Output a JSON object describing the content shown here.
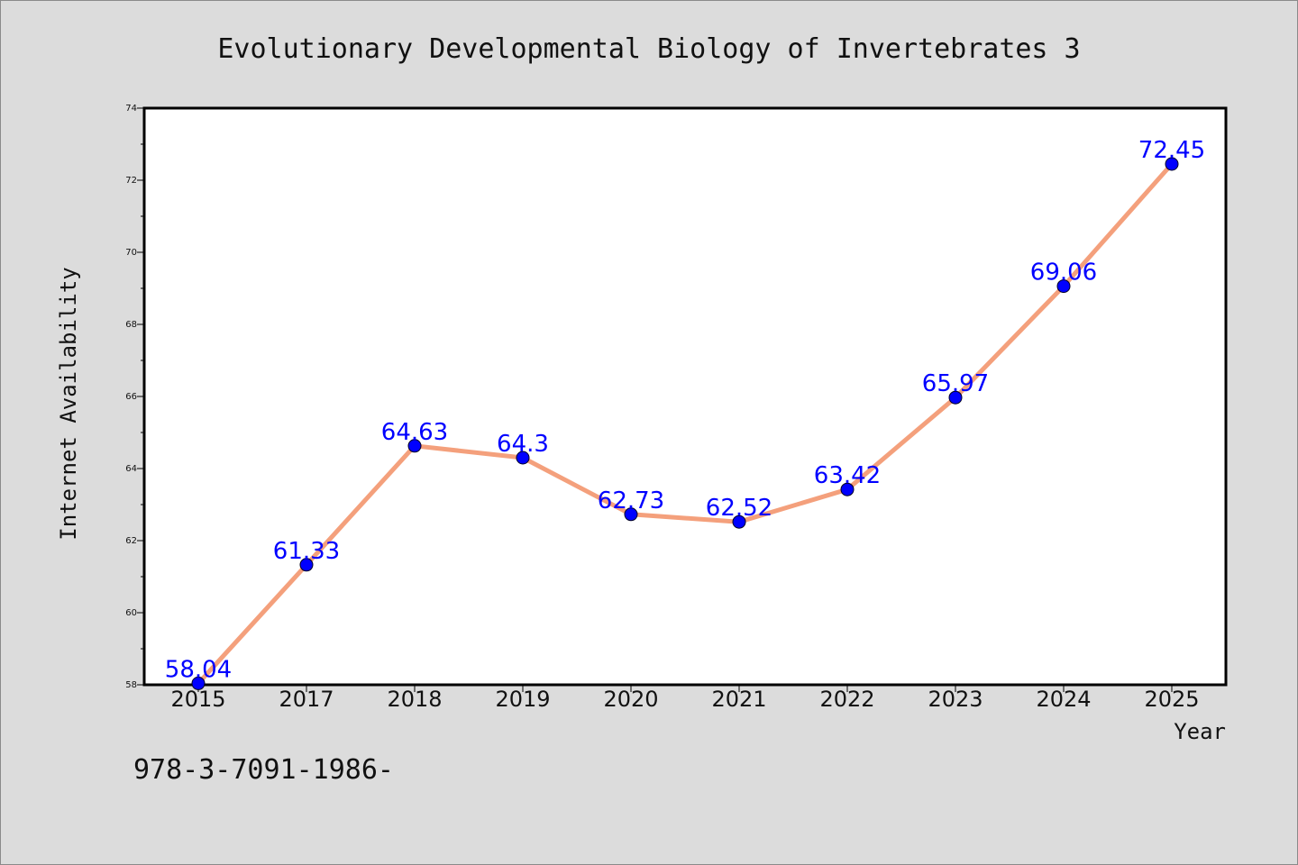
{
  "chart_data": {
    "type": "line",
    "title": "Evolutionary Developmental Biology of Invertebrates 3",
    "xlabel": "Year",
    "ylabel": "Internet Availability",
    "categories": [
      "2015",
      "2017",
      "2018",
      "2019",
      "2020",
      "2021",
      "2022",
      "2023",
      "2024",
      "2025"
    ],
    "values": [
      58.04,
      61.33,
      64.63,
      64.3,
      62.73,
      62.52,
      63.42,
      65.97,
      69.06,
      72.45
    ],
    "data_labels": [
      "58.04",
      "61.33",
      "64.63",
      "64.3",
      "62.73",
      "62.52",
      "63.42",
      "65.97",
      "69.06",
      "72.45"
    ],
    "ylim": [
      58,
      74
    ],
    "yticks": [
      58,
      60,
      62,
      64,
      66,
      68,
      70,
      72,
      74
    ],
    "grid": false,
    "line_color": "#f4a07c",
    "marker_color": "#0000ff",
    "label_color": "#0000ff"
  },
  "footer_text": "978-3-7091-1986-"
}
